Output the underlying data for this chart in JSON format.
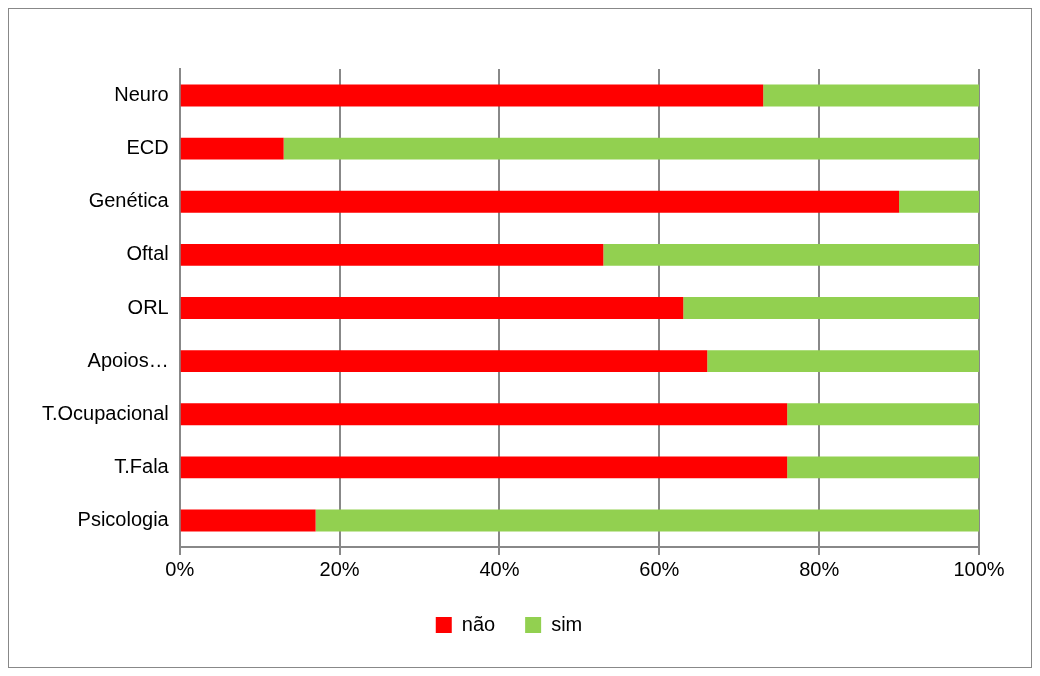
{
  "chart_data": {
    "type": "bar",
    "orientation": "horizontal",
    "stacked": true,
    "categories": [
      "Neuro",
      "ECD",
      "Genética",
      "Oftal",
      "ORL",
      "Apoios…",
      "T.Ocupacional",
      "T.Fala",
      "Psicologia"
    ],
    "series": [
      {
        "name": "não",
        "color": "#ff0000",
        "values": [
          73,
          13,
          90,
          53,
          63,
          66,
          76,
          76,
          17
        ]
      },
      {
        "name": "sim",
        "color": "#92d050",
        "values": [
          27,
          87,
          10,
          47,
          37,
          34,
          24,
          24,
          83
        ]
      }
    ],
    "xlim": [
      0,
      100
    ],
    "xticks": [
      {
        "value": 0,
        "label": "0%"
      },
      {
        "value": 20,
        "label": "20%"
      },
      {
        "value": 40,
        "label": "40%"
      },
      {
        "value": 60,
        "label": "60%"
      },
      {
        "value": 80,
        "label": "80%"
      },
      {
        "value": 100,
        "label": "100%"
      }
    ],
    "grid": "x",
    "legend": "bottom"
  }
}
